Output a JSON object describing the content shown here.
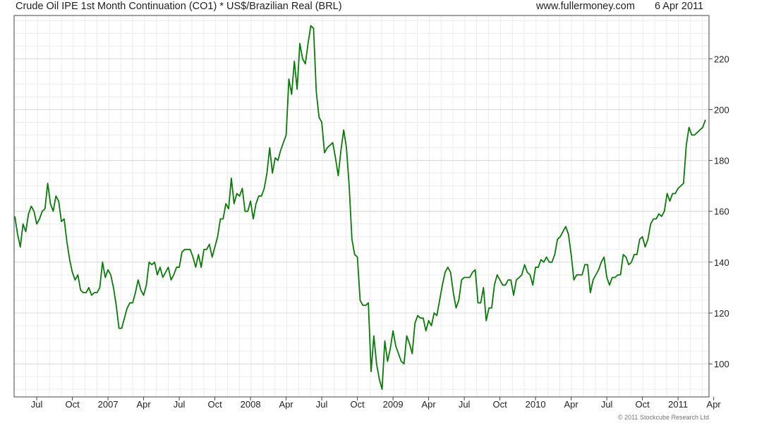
{
  "header": {
    "title": "Crude Oil IPE 1st Month Continuation (CO1) * US$/Brazilian Real (BRL)",
    "website": "www.fullermoney.com",
    "date": "6 Apr 2011"
  },
  "footer": {
    "copyright": "© 2011 Stockcube Research Ltd"
  },
  "colors": {
    "line": "#0a7a0a",
    "grid": "#d8d8d8",
    "frame": "#444444"
  },
  "chart_data": {
    "type": "line",
    "title": "Crude Oil IPE 1st Month Continuation (CO1) * US$/Brazilian Real (BRL)",
    "frequency": "weekly",
    "ylim": [
      87,
      237
    ],
    "y_ticks": [
      100,
      120,
      140,
      160,
      180,
      200,
      220
    ],
    "y_axis_side": "right",
    "grid": true,
    "x_ticks": [
      {
        "label": "Jul",
        "week": 8
      },
      {
        "label": "Oct",
        "week": 21
      },
      {
        "label": "2007",
        "week": 34
      },
      {
        "label": "Apr",
        "week": 47
      },
      {
        "label": "Jul",
        "week": 60
      },
      {
        "label": "Oct",
        "week": 73
      },
      {
        "label": "2008",
        "week": 86
      },
      {
        "label": "Apr",
        "week": 99
      },
      {
        "label": "Jul",
        "week": 112
      },
      {
        "label": "Oct",
        "week": 125
      },
      {
        "label": "2009",
        "week": 138
      },
      {
        "label": "Apr",
        "week": 151
      },
      {
        "label": "Jul",
        "week": 164
      },
      {
        "label": "Oct",
        "week": 177
      },
      {
        "label": "2010",
        "week": 190
      },
      {
        "label": "Apr",
        "week": 203
      },
      {
        "label": "Jul",
        "week": 216
      },
      {
        "label": "Oct",
        "week": 229
      },
      {
        "label": "2011",
        "week": 242
      },
      {
        "label": "Apr",
        "week": 255
      }
    ],
    "series": [
      {
        "values": [
          158,
          151,
          146,
          155,
          152,
          159,
          162,
          160,
          155,
          157,
          160,
          161,
          171,
          163,
          160,
          166,
          164,
          156,
          157,
          148,
          141,
          136,
          133,
          135,
          129,
          128,
          128,
          130,
          127,
          128,
          128,
          130,
          140,
          134,
          137,
          135,
          130,
          123,
          114,
          114,
          118,
          122,
          124,
          124,
          128,
          133,
          129,
          127,
          131,
          140,
          139,
          140,
          135,
          138,
          134,
          136,
          138,
          133,
          135,
          138,
          138,
          144,
          145,
          145,
          145,
          142,
          138,
          143,
          138,
          145,
          145,
          147,
          142,
          146,
          150,
          157,
          157,
          163,
          161,
          173,
          163,
          167,
          166,
          169,
          160,
          160,
          164,
          157,
          163,
          166,
          166,
          169,
          175,
          185,
          175,
          181,
          180,
          184,
          187,
          190,
          212,
          206,
          219,
          208,
          226,
          220,
          218,
          226,
          233,
          232,
          207,
          197,
          195,
          183,
          185,
          186,
          187,
          181,
          174,
          184,
          192,
          185,
          170,
          149,
          143,
          142,
          125,
          123,
          123,
          124,
          97,
          111,
          100,
          94,
          90,
          109,
          101,
          106,
          113,
          107,
          104,
          101,
          100,
          111,
          108,
          104,
          116,
          119,
          118,
          118,
          113,
          117,
          115,
          120,
          119,
          125,
          131,
          136,
          138,
          136,
          128,
          122,
          125,
          133,
          134,
          134,
          134,
          136,
          137,
          124,
          124,
          130,
          117,
          122,
          122,
          131,
          135,
          133,
          131,
          131,
          133,
          133,
          127,
          133,
          134,
          135,
          139,
          136,
          135,
          131,
          138,
          138,
          141,
          140,
          142,
          140,
          140,
          143,
          149,
          150,
          152,
          154,
          151,
          143,
          133,
          135,
          135,
          135,
          139,
          139,
          128,
          133,
          135,
          137,
          140,
          142,
          134,
          131,
          134,
          134,
          135,
          135,
          143,
          142,
          139,
          140,
          143,
          143,
          149,
          150,
          146,
          149,
          155,
          157,
          157,
          159,
          158,
          160,
          167,
          164,
          167,
          167,
          169,
          170,
          171,
          186,
          193,
          190,
          190,
          191,
          192,
          193,
          196
        ]
      }
    ]
  }
}
